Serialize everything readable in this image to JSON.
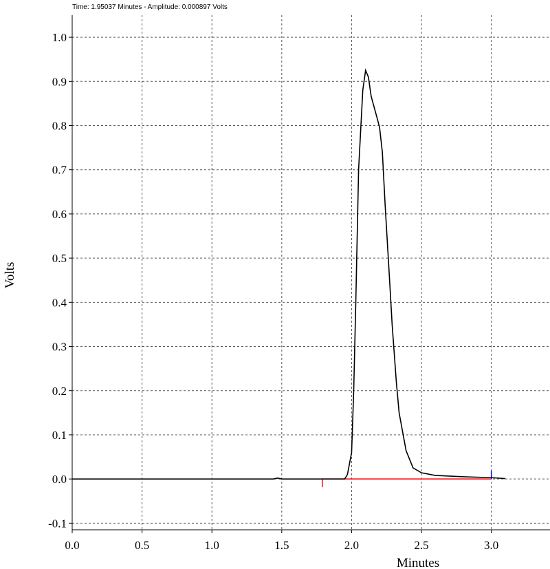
{
  "chart_data": {
    "type": "line",
    "header": "Time:  1.95037 Minutes - Amplitude:  0.000897 Volts",
    "x_label": "Minutes",
    "y_label": "Volts",
    "xlim": [
      0,
      3.42
    ],
    "ylim": [
      -0.115,
      1.05
    ],
    "xticks": [
      {
        "value": 0,
        "label": "0.0"
      },
      0.5,
      {
        "value": 1,
        "label": "1.0"
      },
      1.5,
      {
        "value": 2,
        "label": "2.0"
      },
      2.5,
      {
        "value": 3,
        "label": "3.0"
      }
    ],
    "yticks": [
      {
        "value": -0.1,
        "label": "-0.1"
      },
      {
        "value": 0,
        "label": "0.0"
      },
      0.1,
      0.2,
      0.3,
      0.4,
      0.5,
      0.6,
      0.7,
      0.8,
      0.9,
      {
        "value": 1,
        "label": "1.0"
      }
    ],
    "grid": true,
    "series": [
      {
        "name": "Volts",
        "color": "#000000",
        "x": [
          0,
          1.44,
          1.47,
          1.5,
          1.95,
          1.97,
          2.0,
          2.015,
          2.03,
          2.05,
          2.08,
          2.1,
          2.12,
          2.14,
          2.18,
          2.2,
          2.22,
          2.24,
          2.27,
          2.29,
          2.32,
          2.34,
          2.39,
          2.44,
          2.5,
          2.6,
          2.8,
          3.0,
          3.1
        ],
        "values": [
          0,
          0,
          0.002,
          0,
          0,
          0.01,
          0.06,
          0.2,
          0.4,
          0.7,
          0.88,
          0.925,
          0.91,
          0.866,
          0.82,
          0.796,
          0.74,
          0.62,
          0.46,
          0.35,
          0.22,
          0.15,
          0.064,
          0.025,
          0.014,
          0.008,
          0.005,
          0.003,
          0.001
        ]
      }
    ],
    "baseline": {
      "start": 1.79,
      "end": 3.0,
      "color": "#ff0000",
      "end_color": "#0000ff"
    }
  }
}
